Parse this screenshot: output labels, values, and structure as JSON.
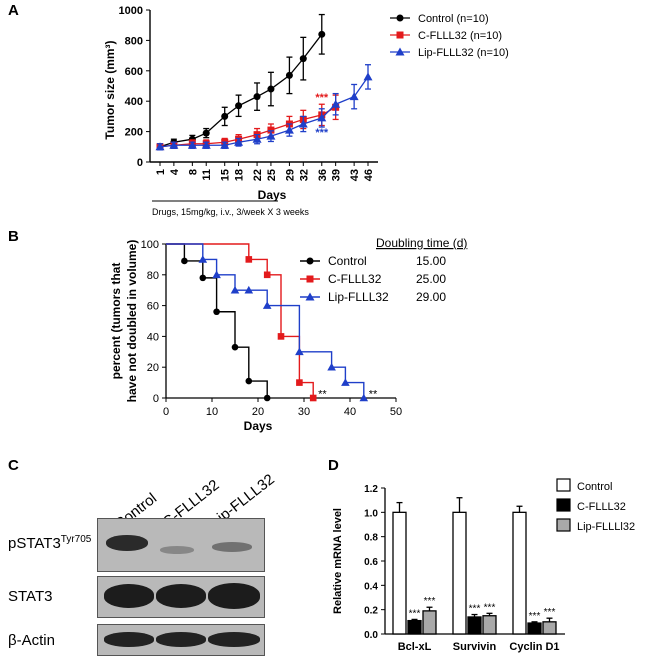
{
  "panelA": {
    "letter": "A",
    "chart_data": {
      "type": "line",
      "ylabel": "Tumor size (mm³)",
      "xlabel": "Days",
      "note": "Drugs, 15mg/kg, i.v., 3/week X 3 weeks",
      "ylim": [
        0,
        1000
      ],
      "yticks": [
        0,
        200,
        400,
        600,
        800,
        1000
      ],
      "xticks": [
        "1",
        "4",
        "8",
        "11",
        "15",
        "18",
        "22",
        "25",
        "29",
        "32",
        "36",
        "39",
        "43",
        "46"
      ],
      "series": [
        {
          "name": "Control (n=10)",
          "color": "#000000",
          "marker": "circle",
          "x": [
            1,
            4,
            8,
            11,
            15,
            18,
            22,
            25,
            29,
            32,
            36
          ],
          "y": [
            100,
            130,
            150,
            190,
            300,
            370,
            430,
            480,
            570,
            680,
            840
          ],
          "err": [
            20,
            20,
            25,
            30,
            60,
            70,
            90,
            110,
            120,
            140,
            130
          ]
        },
        {
          "name": "C-FLLL32 (n=10)",
          "color": "#e31a1c",
          "marker": "square",
          "x": [
            1,
            4,
            8,
            11,
            15,
            18,
            22,
            25,
            29,
            32,
            36,
            39
          ],
          "y": [
            100,
            110,
            120,
            120,
            130,
            150,
            180,
            210,
            250,
            280,
            310,
            360
          ],
          "err": [
            20,
            20,
            25,
            25,
            25,
            30,
            40,
            40,
            50,
            60,
            70,
            80
          ]
        },
        {
          "name": "Lip-FLLL32 (n=10)",
          "color": "#1f3fc9",
          "marker": "triangle",
          "x": [
            1,
            4,
            8,
            11,
            15,
            18,
            22,
            25,
            29,
            32,
            36,
            39,
            43,
            46
          ],
          "y": [
            100,
            110,
            110,
            110,
            110,
            130,
            150,
            170,
            210,
            250,
            290,
            380,
            430,
            560
          ],
          "err": [
            20,
            20,
            20,
            20,
            20,
            25,
            30,
            35,
            40,
            50,
            60,
            70,
            80,
            80
          ]
        }
      ],
      "annotations": [
        {
          "text": "***",
          "color": "#e31a1c",
          "x": 36,
          "y": 400
        },
        {
          "text": "***",
          "color": "#1f3fc9",
          "x": 36,
          "y": 170
        }
      ]
    }
  },
  "panelB": {
    "letter": "B",
    "chart_data": {
      "type": "line",
      "ylabel_line1": "percent (tumors that",
      "ylabel_line2": "have not doubled in volume)",
      "xlabel": "Days",
      "xlim": [
        0,
        50
      ],
      "ylim": [
        0,
        100
      ],
      "xticks": [
        0,
        10,
        20,
        30,
        40,
        50
      ],
      "yticks": [
        0,
        20,
        40,
        60,
        80,
        100
      ],
      "legend_header": "Doubling time (d)",
      "series": [
        {
          "name": "Control",
          "doubling": "15.00",
          "color": "#000000",
          "marker": "circle",
          "x": [
            0,
            4,
            8,
            11,
            15,
            18,
            22
          ],
          "y": [
            100,
            89,
            78,
            56,
            33,
            11,
            0
          ]
        },
        {
          "name": "C-FLLL32",
          "doubling": "25.00",
          "color": "#e31a1c",
          "marker": "square",
          "x": [
            0,
            18,
            22,
            25,
            29,
            32
          ],
          "y": [
            100,
            90,
            80,
            40,
            10,
            0
          ]
        },
        {
          "name": "Lip-FLLL32",
          "doubling": "29.00",
          "color": "#1f3fc9",
          "marker": "triangle",
          "x": [
            0,
            8,
            11,
            15,
            18,
            22,
            29,
            36,
            39,
            43
          ],
          "y": [
            100,
            90,
            80,
            70,
            70,
            60,
            30,
            20,
            10,
            0
          ]
        }
      ],
      "annotations": [
        {
          "text": "**",
          "x": 34,
          "y": 3
        },
        {
          "text": "**",
          "x": 45,
          "y": 3
        }
      ]
    }
  },
  "panelC": {
    "letter": "C",
    "lanes": [
      "Control",
      "C-FLLL32",
      "Lip-FLLL32"
    ],
    "rows": [
      {
        "label": "pSTAT3",
        "sup": "Tyr705"
      },
      {
        "label": "STAT3",
        "sup": ""
      },
      {
        "label": "β-Actin",
        "sup": ""
      }
    ]
  },
  "panelD": {
    "letter": "D",
    "chart_data": {
      "type": "bar",
      "ylabel": "Relative mRNA level",
      "ylim": [
        0,
        1.2
      ],
      "yticks": [
        "0.0",
        "0.2",
        "0.4",
        "0.6",
        "0.8",
        "1.0",
        "1.2"
      ],
      "categories": [
        "Bcl-xL",
        "Survivin",
        "Cyclin D1"
      ],
      "series": [
        {
          "name": "Control",
          "fill": "#ffffff",
          "values": [
            1.0,
            1.0,
            1.0
          ],
          "err": [
            0.08,
            0.12,
            0.05
          ]
        },
        {
          "name": "C-FLLL32",
          "fill": "#000000",
          "values": [
            0.11,
            0.14,
            0.09
          ],
          "err": [
            0.01,
            0.02,
            0.01
          ]
        },
        {
          "name": "Lip-FLLLl32",
          "fill": "#a9a9a9",
          "values": [
            0.19,
            0.15,
            0.1
          ],
          "err": [
            0.03,
            0.02,
            0.03
          ]
        }
      ],
      "significance": "***"
    }
  }
}
